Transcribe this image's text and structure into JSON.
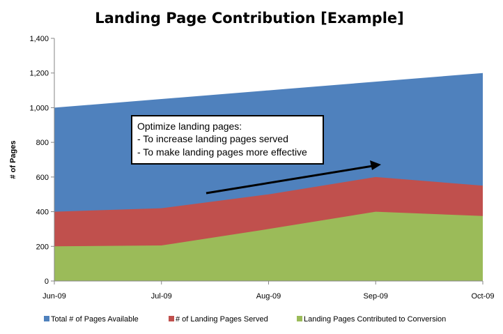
{
  "chart_data": {
    "type": "area",
    "stacked": false,
    "title": "Landing Page Contribution [Example]",
    "xlabel": "",
    "ylabel": "# of Pages",
    "categories": [
      "Jun-09",
      "Jul-09",
      "Aug-09",
      "Sep-09",
      "Oct-09"
    ],
    "ylim": [
      0,
      1400
    ],
    "yticks": [
      0,
      200,
      400,
      600,
      800,
      1000,
      1200,
      1400
    ],
    "ytick_labels": [
      "0",
      "200",
      "400",
      "600",
      "800",
      "1,000",
      "1,200",
      "1,400"
    ],
    "series": [
      {
        "name": "Total # of Pages Available",
        "values": [
          1000,
          1050,
          1100,
          1150,
          1200
        ],
        "color": "#4f81bd"
      },
      {
        "name": "# of Landing Pages Served",
        "values": [
          400,
          420,
          500,
          600,
          550
        ],
        "color": "#c0504d"
      },
      {
        "name": "Landing Pages Contributed to Conversion",
        "values": [
          200,
          205,
          300,
          400,
          375
        ],
        "color": "#9bbb59"
      }
    ],
    "grid": false,
    "legend_position": "bottom",
    "annotation": {
      "lines": [
        "Optimize landing pages:",
        "- To increase landing pages served",
        "- To make landing pages more effective"
      ],
      "arrow": "upward trend arrow"
    }
  }
}
